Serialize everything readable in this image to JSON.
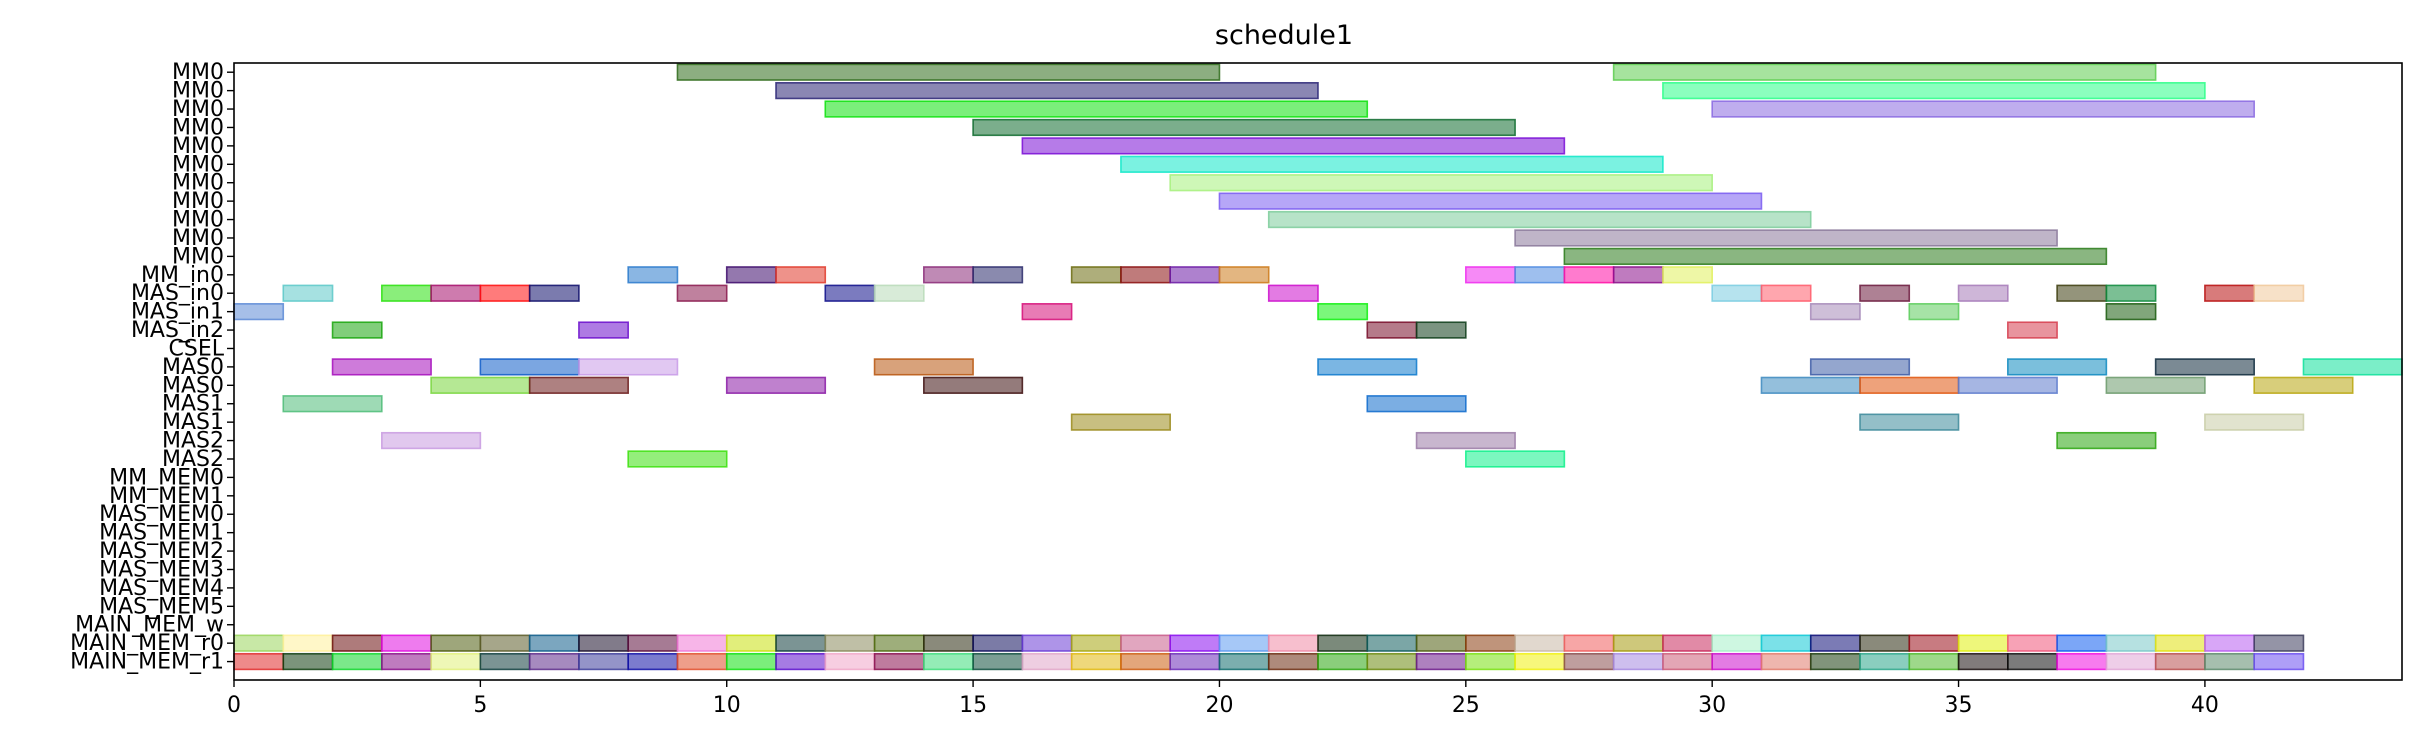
{
  "chart_data": {
    "type": "gantt",
    "title": "schedule1",
    "xlabel": "",
    "ylabel": "",
    "xlim": [
      0,
      44
    ],
    "xticks": [
      0,
      5,
      10,
      15,
      20,
      25,
      30,
      35,
      40
    ],
    "grid": false,
    "rows": [
      {
        "label": "MM0",
        "tasks": [
          {
            "start": 9,
            "end": 20,
            "color": "#2e6b1a"
          },
          {
            "start": 28,
            "end": 39,
            "color": "#5ccc4e"
          }
        ]
      },
      {
        "label": "MM0",
        "tasks": [
          {
            "start": 11,
            "end": 22,
            "color": "#2a2475"
          },
          {
            "start": 29,
            "end": 40,
            "color": "#2bff88"
          }
        ]
      },
      {
        "label": "MM0",
        "tasks": [
          {
            "start": 12,
            "end": 23,
            "color": "#0ee20e"
          },
          {
            "start": 30,
            "end": 41,
            "color": "#8a6ae0"
          }
        ]
      },
      {
        "label": "MM0",
        "tasks": [
          {
            "start": 15,
            "end": 26,
            "color": "#0e6b2e"
          }
        ]
      },
      {
        "label": "MM0",
        "tasks": [
          {
            "start": 16,
            "end": 27,
            "color": "#7a0ed6"
          }
        ]
      },
      {
        "label": "MM0",
        "tasks": [
          {
            "start": 18,
            "end": 29,
            "color": "#0ee8c8"
          }
        ]
      },
      {
        "label": "MM0",
        "tasks": [
          {
            "start": 19,
            "end": 30,
            "color": "#a6f07c"
          }
        ]
      },
      {
        "label": "MM0",
        "tasks": [
          {
            "start": 20,
            "end": 31,
            "color": "#7a5cf0"
          }
        ]
      },
      {
        "label": "MM0",
        "tasks": [
          {
            "start": 21,
            "end": 32,
            "color": "#7ccc9a"
          }
        ]
      },
      {
        "label": "MM0",
        "tasks": [
          {
            "start": 26,
            "end": 37,
            "color": "#8a789a"
          }
        ]
      },
      {
        "label": "MM0",
        "tasks": [
          {
            "start": 27,
            "end": 38,
            "color": "#2a7a1a"
          }
        ]
      },
      {
        "label": "MM_in0",
        "tasks": [
          {
            "start": 8,
            "end": 9,
            "color": "#2a7acc"
          },
          {
            "start": 10,
            "end": 11,
            "color": "#3d0a6b"
          },
          {
            "start": 11,
            "end": 12,
            "color": "#e0392a"
          },
          {
            "start": 14,
            "end": 15,
            "color": "#8a2a78"
          },
          {
            "start": 15,
            "end": 16,
            "color": "#2a2a6b"
          },
          {
            "start": 17,
            "end": 18,
            "color": "#6b6b0e"
          },
          {
            "start": 18,
            "end": 19,
            "color": "#8a0e0e"
          },
          {
            "start": 19,
            "end": 20,
            "color": "#6b1aa6"
          },
          {
            "start": 20,
            "end": 21,
            "color": "#cc7a1a"
          },
          {
            "start": 25,
            "end": 26,
            "color": "#ee2aee"
          },
          {
            "start": 26,
            "end": 27,
            "color": "#4e8ae0"
          },
          {
            "start": 27,
            "end": 28,
            "color": "#ff0ea6"
          },
          {
            "start": 28,
            "end": 29,
            "color": "#8a0e8a"
          },
          {
            "start": 29,
            "end": 30,
            "color": "#e0f05c"
          }
        ]
      },
      {
        "label": "MAS_in0",
        "tasks": [
          {
            "start": 1,
            "end": 2,
            "color": "#5cc8c8"
          },
          {
            "start": 3,
            "end": 4,
            "color": "#2ae00e"
          },
          {
            "start": 4,
            "end": 5,
            "color": "#a60e6b"
          },
          {
            "start": 5,
            "end": 6,
            "color": "#ff0e0e"
          },
          {
            "start": 6,
            "end": 7,
            "color": "#0e0e6b"
          },
          {
            "start": 9,
            "end": 10,
            "color": "#8a1a4e"
          },
          {
            "start": 12,
            "end": 13,
            "color": "#0e0e8a"
          },
          {
            "start": 13,
            "end": 14,
            "color": "#b8dab8"
          },
          {
            "start": 21,
            "end": 22,
            "color": "#cc0ecc"
          },
          {
            "start": 30,
            "end": 31,
            "color": "#7acce0"
          },
          {
            "start": 31,
            "end": 32,
            "color": "#ff5c6b"
          },
          {
            "start": 33,
            "end": 34,
            "color": "#6b1a3d"
          },
          {
            "start": 35,
            "end": 36,
            "color": "#a67ab8"
          },
          {
            "start": 37,
            "end": 38,
            "color": "#3d3d0e"
          },
          {
            "start": 38,
            "end": 39,
            "color": "#0e8a3d"
          },
          {
            "start": 40,
            "end": 41,
            "color": "#b80e0e"
          },
          {
            "start": 41,
            "end": 42,
            "color": "#f0c89a"
          }
        ]
      },
      {
        "label": "MAS_in1",
        "tasks": [
          {
            "start": 0,
            "end": 1,
            "color": "#5c8ad6"
          },
          {
            "start": 16,
            "end": 17,
            "color": "#d60e78"
          },
          {
            "start": 22,
            "end": 23,
            "color": "#0ef00e"
          },
          {
            "start": 32,
            "end": 33,
            "color": "#a68ab8"
          },
          {
            "start": 34,
            "end": 35,
            "color": "#5ccc5c"
          },
          {
            "start": 38,
            "end": 39,
            "color": "#1a5c0e"
          }
        ]
      },
      {
        "label": "MAS_in2",
        "tasks": [
          {
            "start": 2,
            "end": 3,
            "color": "#1aa60e"
          },
          {
            "start": 7,
            "end": 8,
            "color": "#6b0ecc"
          },
          {
            "start": 23,
            "end": 24,
            "color": "#780e2a"
          },
          {
            "start": 24,
            "end": 25,
            "color": "#0e3d1a"
          },
          {
            "start": 36,
            "end": 37,
            "color": "#d63d4e"
          }
        ]
      },
      {
        "label": "CSEL",
        "tasks": []
      },
      {
        "label": "MAS0",
        "tasks": [
          {
            "start": 2,
            "end": 4,
            "color": "#a60ebc"
          },
          {
            "start": 5,
            "end": 7,
            "color": "#0e5cc8"
          },
          {
            "start": 7,
            "end": 9,
            "color": "#c89ae8"
          },
          {
            "start": 13,
            "end": 15,
            "color": "#b8560e"
          },
          {
            "start": 22,
            "end": 24,
            "color": "#0e7acc"
          },
          {
            "start": 32,
            "end": 34,
            "color": "#3d5ca6"
          },
          {
            "start": 36,
            "end": 38,
            "color": "#0e8ac0"
          },
          {
            "start": 39,
            "end": 41,
            "color": "#0e2a3d"
          },
          {
            "start": 42,
            "end": 44,
            "color": "#0ee09a"
          }
        ]
      },
      {
        "label": "MAS0",
        "tasks": [
          {
            "start": 4,
            "end": 6,
            "color": "#78d63d"
          },
          {
            "start": 6,
            "end": 8,
            "color": "#6b1a1a"
          },
          {
            "start": 10,
            "end": 12,
            "color": "#8a1aa6"
          },
          {
            "start": 14,
            "end": 16,
            "color": "#3d0e0e"
          },
          {
            "start": 31,
            "end": 33,
            "color": "#3d8ac0"
          },
          {
            "start": 33,
            "end": 35,
            "color": "#e0560e"
          },
          {
            "start": 35,
            "end": 37,
            "color": "#5c7acc"
          },
          {
            "start": 38,
            "end": 40,
            "color": "#6b9a6b"
          },
          {
            "start": 41,
            "end": 43,
            "color": "#b8a60e"
          }
        ]
      },
      {
        "label": "MAS1",
        "tasks": [
          {
            "start": 1,
            "end": 3,
            "color": "#4ebc78"
          },
          {
            "start": 23,
            "end": 25,
            "color": "#0e6bcc"
          }
        ]
      },
      {
        "label": "MAS1",
        "tasks": [
          {
            "start": 17,
            "end": 19,
            "color": "#9a8a1a"
          },
          {
            "start": 33,
            "end": 35,
            "color": "#3d8a9a"
          },
          {
            "start": 40,
            "end": 42,
            "color": "#c8cca6"
          }
        ]
      },
      {
        "label": "MAS2",
        "tasks": [
          {
            "start": 3,
            "end": 5,
            "color": "#c89ae0"
          },
          {
            "start": 24,
            "end": 26,
            "color": "#9a7aa6"
          },
          {
            "start": 37,
            "end": 39,
            "color": "#2aa60e"
          }
        ]
      },
      {
        "label": "MAS2",
        "tasks": [
          {
            "start": 8,
            "end": 10,
            "color": "#3de00e"
          },
          {
            "start": 25,
            "end": 27,
            "color": "#0ef08a"
          }
        ]
      },
      {
        "label": "MM_MEM0",
        "tasks": []
      },
      {
        "label": "MM_MEM1",
        "tasks": []
      },
      {
        "label": "MAS_MEM0",
        "tasks": []
      },
      {
        "label": "MAS_MEM1",
        "tasks": []
      },
      {
        "label": "MAS_MEM2",
        "tasks": []
      },
      {
        "label": "MAS_MEM3",
        "tasks": []
      },
      {
        "label": "MAS_MEM4",
        "tasks": []
      },
      {
        "label": "MAS_MEM5",
        "tasks": []
      },
      {
        "label": "MAIN_MEM_w",
        "tasks": []
      },
      {
        "label": "MAIN_MEM_r0",
        "tasks": [
          {
            "start": 0,
            "end": 1,
            "color": "#9ad65c"
          },
          {
            "start": 1,
            "end": 2,
            "color": "#fff09a"
          },
          {
            "start": 2,
            "end": 3,
            "color": "#6b0e0e"
          },
          {
            "start": 3,
            "end": 4,
            "color": "#e00ee0"
          },
          {
            "start": 4,
            "end": 5,
            "color": "#4e5c0e"
          },
          {
            "start": 5,
            "end": 6,
            "color": "#5c5c2a"
          },
          {
            "start": 6,
            "end": 7,
            "color": "#0e5c8a"
          },
          {
            "start": 7,
            "end": 8,
            "color": "#1a0e2a"
          },
          {
            "start": 8,
            "end": 9,
            "color": "#5c0e3d"
          },
          {
            "start": 9,
            "end": 10,
            "color": "#f078d6"
          },
          {
            "start": 10,
            "end": 11,
            "color": "#c8e00e"
          },
          {
            "start": 11,
            "end": 12,
            "color": "#0e3d3d"
          },
          {
            "start": 12,
            "end": 13,
            "color": "#8a8a5c"
          },
          {
            "start": 13,
            "end": 14,
            "color": "#4e6b0e"
          },
          {
            "start": 14,
            "end": 15,
            "color": "#2a2a0e"
          },
          {
            "start": 15,
            "end": 16,
            "color": "#0e0e5c"
          },
          {
            "start": 16,
            "end": 17,
            "color": "#6b3dd6"
          },
          {
            "start": 17,
            "end": 18,
            "color": "#a6a60e"
          },
          {
            "start": 18,
            "end": 19,
            "color": "#c85c8a"
          },
          {
            "start": 19,
            "end": 20,
            "color": "#8a0ef0"
          },
          {
            "start": 20,
            "end": 21,
            "color": "#5c9af0"
          },
          {
            "start": 21,
            "end": 22,
            "color": "#f08aa6"
          },
          {
            "start": 22,
            "end": 23,
            "color": "#0e2a0e"
          },
          {
            "start": 23,
            "end": 24,
            "color": "#0e5c5c"
          },
          {
            "start": 24,
            "end": 25,
            "color": "#4e5c0e"
          },
          {
            "start": 25,
            "end": 26,
            "color": "#8a3d0e"
          },
          {
            "start": 26,
            "end": 27,
            "color": "#c8b8a6"
          },
          {
            "start": 27,
            "end": 28,
            "color": "#f05c5c"
          },
          {
            "start": 28,
            "end": 29,
            "color": "#a69a0e"
          },
          {
            "start": 29,
            "end": 30,
            "color": "#c82a5c"
          },
          {
            "start": 30,
            "end": 31,
            "color": "#a6f0c8"
          },
          {
            "start": 31,
            "end": 32,
            "color": "#0ec8d6"
          },
          {
            "start": 32,
            "end": 33,
            "color": "#0e0e78"
          },
          {
            "start": 33,
            "end": 34,
            "color": "#2a2a0e"
          },
          {
            "start": 34,
            "end": 35,
            "color": "#9a0e1a"
          },
          {
            "start": 35,
            "end": 36,
            "color": "#e0f00e"
          },
          {
            "start": 36,
            "end": 37,
            "color": "#f0567a"
          },
          {
            "start": 37,
            "end": 38,
            "color": "#0e5cf0"
          },
          {
            "start": 38,
            "end": 39,
            "color": "#7ac8c8"
          },
          {
            "start": 39,
            "end": 40,
            "color": "#e0e00e"
          },
          {
            "start": 40,
            "end": 41,
            "color": "#b85cf0"
          },
          {
            "start": 41,
            "end": 42,
            "color": "#3d3d5c"
          }
        ]
      },
      {
        "label": "MAIN_MEM_r1",
        "tasks": [
          {
            "start": 0,
            "end": 1,
            "color": "#e02a2a"
          },
          {
            "start": 1,
            "end": 2,
            "color": "#0e3d0e"
          },
          {
            "start": 2,
            "end": 3,
            "color": "#0ed62a"
          },
          {
            "start": 3,
            "end": 4,
            "color": "#8a0e8a"
          },
          {
            "start": 4,
            "end": 5,
            "color": "#e0f07a"
          },
          {
            "start": 5,
            "end": 6,
            "color": "#0e3d3d"
          },
          {
            "start": 6,
            "end": 7,
            "color": "#5c2a8a"
          },
          {
            "start": 7,
            "end": 8,
            "color": "#3d3d9a"
          },
          {
            "start": 8,
            "end": 9,
            "color": "#0e0ea6"
          },
          {
            "start": 9,
            "end": 10,
            "color": "#e04e2a"
          },
          {
            "start": 10,
            "end": 11,
            "color": "#0ee00e"
          },
          {
            "start": 11,
            "end": 12,
            "color": "#5c0ecc"
          },
          {
            "start": 12,
            "end": 13,
            "color": "#f0a6c8"
          },
          {
            "start": 13,
            "end": 14,
            "color": "#8a0e4e"
          },
          {
            "start": 14,
            "end": 15,
            "color": "#3ddc7a"
          },
          {
            "start": 15,
            "end": 16,
            "color": "#0e4e3d"
          },
          {
            "start": 16,
            "end": 17,
            "color": "#e0a6c8"
          },
          {
            "start": 17,
            "end": 18,
            "color": "#e0b80e"
          },
          {
            "start": 18,
            "end": 19,
            "color": "#cc5c0e"
          },
          {
            "start": 19,
            "end": 20,
            "color": "#6b2ab8"
          },
          {
            "start": 20,
            "end": 21,
            "color": "#0e6b6b"
          },
          {
            "start": 21,
            "end": 22,
            "color": "#6b2a0e"
          },
          {
            "start": 22,
            "end": 23,
            "color": "#2aa60e"
          },
          {
            "start": 23,
            "end": 24,
            "color": "#6b8a0e"
          },
          {
            "start": 24,
            "end": 25,
            "color": "#6b1a8a"
          },
          {
            "start": 25,
            "end": 26,
            "color": "#78e00e"
          },
          {
            "start": 26,
            "end": 27,
            "color": "#f0f00e"
          },
          {
            "start": 27,
            "end": 28,
            "color": "#8a4e4e"
          },
          {
            "start": 28,
            "end": 29,
            "color": "#a68ae0"
          },
          {
            "start": 29,
            "end": 30,
            "color": "#cc5c78"
          },
          {
            "start": 30,
            "end": 31,
            "color": "#cc0ecc"
          },
          {
            "start": 31,
            "end": 32,
            "color": "#e07a6b"
          },
          {
            "start": 32,
            "end": 33,
            "color": "#1a3d0e"
          },
          {
            "start": 33,
            "end": 34,
            "color": "#2aa68a"
          },
          {
            "start": 34,
            "end": 35,
            "color": "#4eb82a"
          },
          {
            "start": 35,
            "end": 36,
            "color": "#1a0e0e"
          },
          {
            "start": 36,
            "end": 37,
            "color": "#0e0e0e"
          },
          {
            "start": 37,
            "end": 38,
            "color": "#f00ee0"
          },
          {
            "start": 38,
            "end": 39,
            "color": "#e0a6d6"
          },
          {
            "start": 39,
            "end": 40,
            "color": "#b84e4e"
          },
          {
            "start": 40,
            "end": 41,
            "color": "#5c8a6b"
          },
          {
            "start": 41,
            "end": 42,
            "color": "#6b4ef0"
          }
        ]
      }
    ]
  }
}
